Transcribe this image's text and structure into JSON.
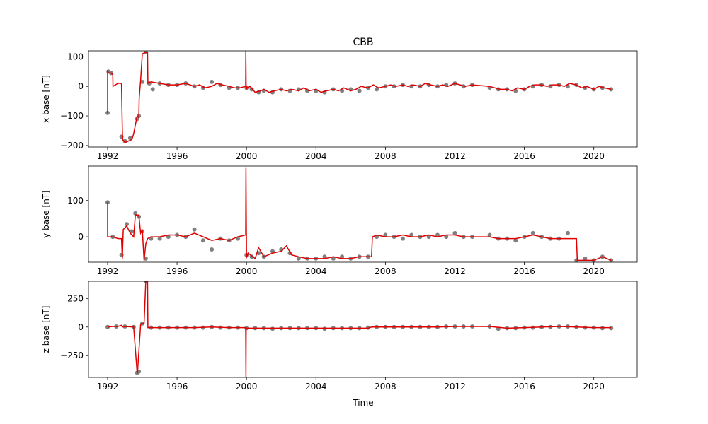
{
  "figure": {
    "title": "CBB",
    "xlabel": "Time"
  },
  "chart_data": [
    {
      "type": "scatter",
      "title": "CBB",
      "xlabel": "",
      "ylabel": "x base [nT]",
      "xlim": [
        1990.9,
        2022.5
      ],
      "ylim": [
        -205,
        120
      ],
      "xticks": [
        1992,
        1996,
        2000,
        2004,
        2008,
        2012,
        2016,
        2020
      ],
      "yticks": [
        -200,
        -100,
        0,
        100
      ],
      "grid": false,
      "colors": {
        "points": "#808080",
        "line": "#e00000"
      },
      "series": [
        {
          "kind": "line",
          "x": [
            1992.0,
            1992.0,
            1992.0,
            1992.02,
            1992.05,
            1992.2,
            1992.3,
            1992.31,
            1992.6,
            1992.8,
            1992.85,
            1992.87,
            1993.0,
            1993.4,
            1993.5,
            1993.7,
            1993.8,
            1993.82,
            1993.9,
            1994.0,
            1994.2,
            1994.3,
            1994.32,
            1994.5,
            1995.0,
            1995.5,
            1996.0,
            1996.5,
            1997.0,
            1997.3,
            1997.6,
            1998.0,
            1998.3,
            1998.6,
            1999.0,
            1999.3,
            1999.6,
            1999.95,
            1999.96,
            1999.98,
            2000.0,
            2000.01,
            2000.03,
            2000.2,
            2000.5,
            2000.8,
            2001.0,
            2001.3,
            2001.6,
            2002.0,
            2002.3,
            2002.6,
            2003.0,
            2003.3,
            2003.6,
            2004.0,
            2004.3,
            2004.6,
            2005.0,
            2005.3,
            2005.6,
            2006.0,
            2006.3,
            2006.6,
            2007.0,
            2007.3,
            2007.6,
            2008.0,
            2008.3,
            2008.6,
            2009.0,
            2009.3,
            2009.6,
            2010.0,
            2010.3,
            2010.6,
            2011.0,
            2011.3,
            2011.6,
            2012.0,
            2012.3,
            2012.6,
            2013.0,
            2014.0,
            2014.3,
            2014.6,
            2015.0,
            2015.3,
            2015.6,
            2016.0,
            2016.3,
            2016.6,
            2017.0,
            2017.3,
            2017.6,
            2018.0,
            2018.3,
            2018.6,
            2019.0,
            2019.3,
            2019.6,
            2020.0,
            2020.3,
            2020.6,
            2021.0
          ],
          "y": [
            -90,
            55,
            45,
            50,
            45,
            45,
            40,
            0,
            10,
            10,
            -150,
            -180,
            -190,
            -180,
            -160,
            -100,
            -105,
            -40,
            20,
            110,
            115,
            115,
            10,
            15,
            10,
            5,
            5,
            10,
            0,
            5,
            -5,
            0,
            10,
            5,
            0,
            -5,
            -5,
            0,
            120,
            -5,
            0,
            -10,
            -5,
            0,
            -20,
            -15,
            -10,
            -20,
            -15,
            -10,
            -15,
            -10,
            -15,
            -5,
            -15,
            -10,
            -20,
            -15,
            -10,
            -15,
            -5,
            -15,
            -10,
            0,
            -5,
            5,
            -5,
            0,
            5,
            0,
            5,
            0,
            5,
            0,
            10,
            5,
            0,
            5,
            0,
            10,
            5,
            0,
            5,
            0,
            -5,
            -10,
            -10,
            -15,
            -5,
            -10,
            0,
            5,
            5,
            0,
            5,
            5,
            0,
            10,
            5,
            -5,
            0,
            -10,
            0,
            -5,
            -10
          ]
        },
        {
          "kind": "points",
          "x": [
            1992.0,
            1992.05,
            1992.2,
            1992.8,
            1993.0,
            1993.3,
            1993.7,
            1993.8,
            1994.0,
            1994.2,
            1994.4,
            1994.6,
            1995.0,
            1995.5,
            1996.0,
            1996.5,
            1997.0,
            1997.5,
            1998.0,
            1998.5,
            1999.0,
            1999.5,
            2000.0,
            2000.3,
            2000.7,
            2001.0,
            2001.5,
            2002.0,
            2002.5,
            2003.0,
            2003.5,
            2004.0,
            2004.5,
            2005.0,
            2005.5,
            2006.0,
            2006.5,
            2007.0,
            2007.5,
            2008.0,
            2008.5,
            2009.0,
            2009.5,
            2010.0,
            2010.5,
            2011.0,
            2011.5,
            2012.0,
            2012.5,
            2013.0,
            2014.0,
            2014.5,
            2015.0,
            2015.5,
            2016.0,
            2016.5,
            2017.0,
            2017.5,
            2018.0,
            2018.5,
            2019.0,
            2019.5,
            2020.0,
            2020.5,
            2021.0
          ],
          "y": [
            -90,
            50,
            45,
            -170,
            -185,
            -175,
            -110,
            -100,
            15,
            115,
            10,
            -10,
            10,
            5,
            5,
            10,
            0,
            -5,
            15,
            5,
            -5,
            -5,
            -5,
            -10,
            -20,
            -15,
            -20,
            -10,
            -15,
            -10,
            -15,
            -15,
            -20,
            -10,
            -15,
            -10,
            -15,
            -5,
            -10,
            0,
            0,
            5,
            0,
            0,
            5,
            0,
            5,
            10,
            0,
            5,
            -5,
            -10,
            -10,
            -15,
            -10,
            0,
            5,
            0,
            5,
            0,
            5,
            -5,
            -10,
            -5,
            -10
          ]
        }
      ]
    },
    {
      "type": "scatter",
      "xlabel": "",
      "ylabel": "y base [nT]",
      "xlim": [
        1990.9,
        2022.5
      ],
      "ylim": [
        -70,
        195
      ],
      "xticks": [
        1992,
        1996,
        2000,
        2004,
        2008,
        2012,
        2016,
        2020
      ],
      "yticks": [
        0,
        100
      ],
      "grid": false,
      "colors": {
        "points": "#808080",
        "line": "#e00000"
      },
      "series": [
        {
          "kind": "line",
          "x": [
            1992.0,
            1992.0,
            1992.02,
            1992.05,
            1992.3,
            1992.6,
            1992.8,
            1992.85,
            1992.9,
            1993.1,
            1993.3,
            1993.5,
            1993.6,
            1993.8,
            1993.9,
            1994.0,
            1994.1,
            1994.2,
            1994.3,
            1994.5,
            1995.0,
            1995.5,
            1996.0,
            1996.5,
            1997.0,
            1997.5,
            1998.0,
            1998.5,
            1999.0,
            1999.5,
            1999.95,
            1999.97,
            2000.0,
            2000.02,
            2000.1,
            2000.5,
            2000.7,
            2001.0,
            2001.5,
            2002.0,
            2002.3,
            2002.6,
            2003.0,
            2003.5,
            2004.0,
            2004.5,
            2005.0,
            2005.5,
            2006.0,
            2006.5,
            2007.0,
            2007.2,
            2007.25,
            2007.5,
            2008.0,
            2008.5,
            2009.0,
            2009.5,
            2010.0,
            2010.5,
            2011.0,
            2011.5,
            2012.0,
            2012.5,
            2013.0,
            2014.0,
            2014.5,
            2015.0,
            2015.5,
            2016.0,
            2016.5,
            2017.0,
            2017.5,
            2018.0,
            2018.5,
            2019.0,
            2019.05,
            2019.5,
            2020.0,
            2020.5,
            2021.0
          ],
          "y": [
            95,
            0,
            0,
            0,
            0,
            -5,
            -5,
            -60,
            20,
            30,
            10,
            0,
            60,
            60,
            10,
            20,
            -65,
            -20,
            -5,
            0,
            0,
            5,
            5,
            0,
            10,
            0,
            -10,
            -5,
            -10,
            0,
            5,
            190,
            -50,
            -55,
            -45,
            -60,
            -30,
            -55,
            -45,
            -40,
            -25,
            -50,
            -55,
            -60,
            -60,
            -60,
            -55,
            -60,
            -60,
            -55,
            -55,
            -55,
            0,
            5,
            0,
            0,
            5,
            0,
            0,
            5,
            0,
            5,
            5,
            0,
            0,
            0,
            -5,
            -5,
            -5,
            0,
            5,
            0,
            -5,
            -5,
            -5,
            -5,
            -65,
            -65,
            -65,
            -55,
            -65
          ]
        },
        {
          "kind": "points",
          "x": [
            1992.0,
            1992.3,
            1992.8,
            1993.1,
            1993.4,
            1993.6,
            1993.8,
            1994.0,
            1994.2,
            1994.5,
            1995.0,
            1995.5,
            1996.0,
            1996.5,
            1997.0,
            1997.5,
            1998.0,
            1998.5,
            1999.0,
            1999.5,
            2000.0,
            2000.3,
            2000.7,
            2001.0,
            2001.5,
            2002.0,
            2002.5,
            2003.0,
            2003.5,
            2004.0,
            2004.5,
            2005.0,
            2005.5,
            2006.0,
            2006.5,
            2007.0,
            2007.5,
            2008.0,
            2008.5,
            2009.0,
            2009.5,
            2010.0,
            2010.5,
            2011.0,
            2011.5,
            2012.0,
            2012.5,
            2013.0,
            2014.0,
            2014.5,
            2015.0,
            2015.5,
            2016.0,
            2016.5,
            2017.0,
            2017.5,
            2018.0,
            2018.5,
            2019.0,
            2019.5,
            2020.0,
            2020.5,
            2021.0
          ],
          "y": [
            95,
            0,
            -50,
            35,
            15,
            65,
            55,
            15,
            -60,
            -5,
            -5,
            0,
            5,
            0,
            20,
            -10,
            -35,
            -5,
            -10,
            -5,
            -50,
            -55,
            -45,
            -55,
            -40,
            -35,
            -45,
            -60,
            -60,
            -60,
            -55,
            -60,
            -55,
            -60,
            -55,
            -55,
            0,
            5,
            0,
            -5,
            5,
            0,
            0,
            5,
            0,
            10,
            0,
            0,
            5,
            -5,
            -5,
            -10,
            0,
            10,
            0,
            -5,
            -5,
            10,
            -65,
            -60,
            -65,
            -55,
            -65
          ]
        }
      ]
    },
    {
      "type": "scatter",
      "xlabel": "Time",
      "ylabel": "z base [nT]",
      "xlim": [
        1990.9,
        2022.5
      ],
      "ylim": [
        -440,
        400
      ],
      "xticks": [
        1992,
        1996,
        2000,
        2004,
        2008,
        2012,
        2016,
        2020
      ],
      "yticks": [
        -250,
        0,
        250
      ],
      "grid": false,
      "colors": {
        "points": "#808080",
        "line": "#e00000"
      },
      "series": [
        {
          "kind": "line",
          "x": [
            1992.0,
            1992.3,
            1992.6,
            1992.8,
            1992.85,
            1993.0,
            1993.5,
            1993.7,
            1993.72,
            1993.9,
            1993.95,
            1994.1,
            1994.2,
            1994.3,
            1994.32,
            1995.0,
            1996.0,
            1997.0,
            1998.0,
            1999.0,
            1999.95,
            1999.97,
            1999.98,
            2000.0,
            2001.0,
            2002.0,
            2003.0,
            2004.0,
            2005.0,
            2006.0,
            2007.0,
            2007.2,
            2008.0,
            2009.0,
            2010.0,
            2011.0,
            2012.0,
            2013.0,
            2014.0,
            2015.0,
            2016.0,
            2017.0,
            2018.0,
            2019.0,
            2020.0,
            2021.0
          ],
          "y": [
            0,
            5,
            5,
            15,
            0,
            5,
            0,
            -400,
            -400,
            20,
            30,
            30,
            400,
            400,
            -5,
            -5,
            -5,
            -5,
            0,
            -5,
            -5,
            -440,
            -10,
            -10,
            -10,
            -10,
            -10,
            -10,
            -10,
            -10,
            -10,
            0,
            0,
            0,
            0,
            0,
            5,
            5,
            5,
            -10,
            -5,
            0,
            5,
            0,
            -5,
            -5
          ]
        },
        {
          "kind": "points",
          "x": [
            1992.0,
            1992.5,
            1993.0,
            1993.5,
            1993.7,
            1993.8,
            1994.0,
            1994.2,
            1994.5,
            1995.0,
            1995.5,
            1996.0,
            1996.5,
            1997.0,
            1997.5,
            1998.0,
            1998.5,
            1999.0,
            1999.5,
            2000.0,
            2000.5,
            2001.0,
            2001.5,
            2002.0,
            2002.5,
            2003.0,
            2003.5,
            2004.0,
            2004.5,
            2005.0,
            2005.5,
            2006.0,
            2006.5,
            2007.0,
            2007.5,
            2008.0,
            2008.5,
            2009.0,
            2009.5,
            2010.0,
            2010.5,
            2011.0,
            2011.5,
            2012.0,
            2012.5,
            2013.0,
            2014.0,
            2014.5,
            2015.0,
            2015.5,
            2016.0,
            2016.5,
            2017.0,
            2017.5,
            2018.0,
            2018.5,
            2019.0,
            2019.5,
            2020.0,
            2020.5,
            2021.0
          ],
          "y": [
            0,
            5,
            5,
            0,
            -400,
            -390,
            30,
            400,
            -5,
            -5,
            -5,
            -5,
            -5,
            -5,
            -5,
            0,
            -5,
            -5,
            -5,
            -10,
            -10,
            -10,
            -15,
            -10,
            -10,
            -10,
            -10,
            -10,
            -15,
            -10,
            -10,
            -10,
            -10,
            -5,
            0,
            0,
            0,
            0,
            0,
            0,
            0,
            0,
            5,
            5,
            5,
            5,
            5,
            -15,
            -10,
            -10,
            -5,
            -5,
            0,
            0,
            5,
            5,
            0,
            -5,
            -5,
            -10,
            -10
          ]
        }
      ]
    }
  ]
}
